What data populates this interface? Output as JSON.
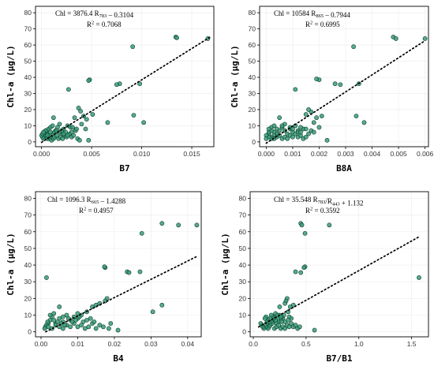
{
  "chart_data": [
    {
      "type": "scatter",
      "xlabel": "B7",
      "ylabel": "Chl-a (μg/L)",
      "equation": "Chl = 3876.4 R783 – 0.3104",
      "r2": "R2 = 0.7068",
      "xlim": [
        -0.0006,
        0.0172
      ],
      "ylim": [
        -3,
        84
      ],
      "xticks": [
        "0.000",
        "0.005",
        "0.010",
        "0.015"
      ],
      "xtick_values": [
        0,
        0.005,
        0.01,
        0.015
      ],
      "yticks": [
        "0",
        "10",
        "20",
        "30",
        "40",
        "50",
        "60",
        "70",
        "80"
      ],
      "ytick_values": [
        0,
        10,
        20,
        30,
        40,
        50,
        60,
        70,
        80
      ],
      "trend": {
        "slope": 3876.4,
        "intercept": -0.3104,
        "x_range": [
          0,
          0.0168
        ]
      },
      "points": [
        [
          0.0166,
          64
        ],
        [
          0.0134,
          65
        ],
        [
          0.0135,
          64.5
        ],
        [
          0.0091,
          59
        ],
        [
          0.0098,
          36
        ],
        [
          0.0078,
          36
        ],
        [
          0.0075,
          35.5
        ],
        [
          0.0092,
          16.5
        ],
        [
          0.0102,
          12
        ],
        [
          0.0066,
          12
        ],
        [
          0.0048,
          38.5
        ],
        [
          0.0047,
          38
        ],
        [
          0.0027,
          32.5
        ],
        [
          0.0037,
          21
        ],
        [
          0.0039,
          19
        ],
        [
          0.0033,
          15
        ],
        [
          0.0042,
          16
        ],
        [
          0.0045,
          14
        ],
        [
          0.0051,
          17
        ],
        [
          0.004,
          11
        ],
        [
          0.0034,
          7
        ],
        [
          0.0044,
          8
        ],
        [
          0.0029,
          9
        ],
        [
          0.0026,
          10
        ],
        [
          0.0024,
          6
        ],
        [
          0.0022,
          8
        ],
        [
          0.002,
          5
        ],
        [
          0.0018,
          11
        ],
        [
          0.0016,
          9
        ],
        [
          0.0014,
          7
        ],
        [
          0.0012,
          15
        ],
        [
          0.0011,
          5
        ],
        [
          0.0009,
          6
        ],
        [
          0.0008,
          4
        ],
        [
          0.0007,
          3
        ],
        [
          0.0006,
          2
        ],
        [
          0.0005,
          5
        ],
        [
          0.0004,
          3
        ],
        [
          0.0003,
          4
        ],
        [
          0.0002,
          2
        ],
        [
          0.0001,
          3
        ],
        [
          0.0,
          4
        ],
        [
          0.0001,
          5
        ],
        [
          0.0003,
          6
        ],
        [
          0.0005,
          7
        ],
        [
          0.0006,
          4
        ],
        [
          0.0008,
          2
        ],
        [
          0.001,
          1
        ],
        [
          0.0012,
          2
        ],
        [
          0.0013,
          3
        ],
        [
          0.0015,
          4
        ],
        [
          0.0017,
          2
        ],
        [
          0.0019,
          3
        ],
        [
          0.0021,
          2
        ],
        [
          0.0023,
          4
        ],
        [
          0.0025,
          3
        ],
        [
          0.0028,
          5
        ],
        [
          0.003,
          3
        ],
        [
          0.0032,
          4
        ],
        [
          0.0036,
          2
        ],
        [
          0.0038,
          1
        ],
        [
          0.0047,
          1
        ],
        [
          0.0007,
          8
        ],
        [
          0.0009,
          9
        ],
        [
          0.0011,
          10
        ],
        [
          0.0004,
          7
        ],
        [
          0.0002,
          6
        ],
        [
          0.0013,
          6
        ],
        [
          0.0015,
          7
        ],
        [
          0.0018,
          6
        ],
        [
          0.002,
          7
        ],
        [
          0.0022,
          5
        ],
        [
          0.0026,
          4
        ],
        [
          0.003,
          6
        ],
        [
          0.0031,
          9
        ],
        [
          0.0035,
          8
        ]
      ]
    },
    {
      "type": "scatter",
      "xlabel": "B8A",
      "ylabel": "Chl-a (μg/L)",
      "equation": "Chl = 10584 R865 – 0.7944",
      "r2": "R2 = 0.6995",
      "xlim": [
        -0.00025,
        0.00613
      ],
      "ylim": [
        -3,
        84
      ],
      "xticks": [
        "0.000",
        "0.001",
        "0.002",
        "0.003",
        "0.004",
        "0.005",
        "0.006"
      ],
      "xtick_values": [
        0,
        0.001,
        0.002,
        0.003,
        0.004,
        0.005,
        0.006
      ],
      "yticks": [
        "0",
        "10",
        "20",
        "30",
        "40",
        "50",
        "60",
        "70",
        "80"
      ],
      "ytick_values": [
        0,
        10,
        20,
        30,
        40,
        50,
        60,
        70,
        80
      ],
      "trend": {
        "slope": 10584,
        "intercept": -0.7944,
        "x_range": [
          0,
          0.006
        ]
      },
      "points": [
        [
          0.006,
          64
        ],
        [
          0.0048,
          65
        ],
        [
          0.0049,
          64
        ],
        [
          0.0033,
          59
        ],
        [
          0.0035,
          36
        ],
        [
          0.0028,
          35.5
        ],
        [
          0.0026,
          36
        ],
        [
          0.0034,
          16
        ],
        [
          0.0037,
          12
        ],
        [
          0.002,
          38.5
        ],
        [
          0.0019,
          39
        ],
        [
          0.0011,
          32.5
        ],
        [
          0.0016,
          20
        ],
        [
          0.0017,
          18.5
        ],
        [
          0.0015,
          17
        ],
        [
          0.0019,
          15
        ],
        [
          0.0021,
          16
        ],
        [
          0.0018,
          12
        ],
        [
          0.0023,
          1
        ],
        [
          0.0014,
          8
        ],
        [
          0.0013,
          9
        ],
        [
          0.0012,
          7
        ],
        [
          0.0011,
          10
        ],
        [
          0.001,
          6
        ],
        [
          0.0009,
          8
        ],
        [
          0.0008,
          5
        ],
        [
          0.0007,
          11
        ],
        [
          0.0006,
          9
        ],
        [
          0.0005,
          7
        ],
        [
          0.0005,
          15
        ],
        [
          0.0004,
          5
        ],
        [
          0.0003,
          6
        ],
        [
          0.0003,
          4
        ],
        [
          0.0002,
          3
        ],
        [
          0.0002,
          2
        ],
        [
          0.0001,
          5
        ],
        [
          0.0001,
          3
        ],
        [
          0.0,
          4
        ],
        [
          0.0,
          2
        ],
        [
          0.0001,
          6
        ],
        [
          0.0002,
          7
        ],
        [
          0.0003,
          2
        ],
        [
          0.0004,
          3
        ],
        [
          0.0005,
          4
        ],
        [
          0.0006,
          2
        ],
        [
          0.0007,
          3
        ],
        [
          0.0008,
          2
        ],
        [
          0.0009,
          4
        ],
        [
          0.001,
          3
        ],
        [
          0.0011,
          5
        ],
        [
          0.0012,
          3
        ],
        [
          0.0013,
          4
        ],
        [
          0.0014,
          2
        ],
        [
          0.0015,
          3
        ],
        [
          0.0016,
          5
        ],
        [
          0.0004,
          8
        ],
        [
          0.0006,
          10
        ],
        [
          0.0007,
          7
        ],
        [
          0.0009,
          9
        ],
        [
          0.001,
          8
        ],
        [
          0.0012,
          6
        ],
        [
          0.0013,
          6
        ],
        [
          0.0015,
          8
        ],
        [
          0.0017,
          7
        ],
        [
          0.0018,
          6
        ],
        [
          0.002,
          9
        ],
        [
          0.0002,
          9
        ],
        [
          0.0003,
          10
        ],
        [
          0.0001,
          8
        ]
      ]
    },
    {
      "type": "scatter",
      "xlabel": "B4",
      "ylabel": "Chl-a (μg/L)",
      "equation": "Chl = 1096.3 R665 – 1.4288",
      "r2": "R2 = 0.4957",
      "xlim": [
        -0.0015,
        0.0437
      ],
      "ylim": [
        -3,
        84
      ],
      "xticks": [
        "0.00",
        "0.01",
        "0.02",
        "0.03",
        "0.04"
      ],
      "xtick_values": [
        0,
        0.01,
        0.02,
        0.03,
        0.04
      ],
      "yticks": [
        "0",
        "10",
        "20",
        "30",
        "40",
        "50",
        "60",
        "70",
        "80"
      ],
      "ytick_values": [
        0,
        10,
        20,
        30,
        40,
        50,
        60,
        70,
        80
      ],
      "trend": {
        "slope": 1096.3,
        "intercept": -1.4288,
        "x_range": [
          0.0013,
          0.0425
        ]
      },
      "points": [
        [
          0.0425,
          64
        ],
        [
          0.033,
          65
        ],
        [
          0.0375,
          64
        ],
        [
          0.0275,
          59
        ],
        [
          0.0235,
          36
        ],
        [
          0.024,
          35.5
        ],
        [
          0.027,
          36
        ],
        [
          0.033,
          16
        ],
        [
          0.0305,
          12
        ],
        [
          0.0175,
          38.5
        ],
        [
          0.0173,
          39
        ],
        [
          0.0015,
          32.5
        ],
        [
          0.018,
          20
        ],
        [
          0.0175,
          18.5
        ],
        [
          0.016,
          17
        ],
        [
          0.014,
          15
        ],
        [
          0.015,
          16
        ],
        [
          0.0125,
          12
        ],
        [
          0.021,
          1
        ],
        [
          0.01,
          8
        ],
        [
          0.009,
          9
        ],
        [
          0.008,
          7
        ],
        [
          0.007,
          10
        ],
        [
          0.006,
          6
        ],
        [
          0.005,
          8
        ],
        [
          0.004,
          5
        ],
        [
          0.0035,
          11
        ],
        [
          0.003,
          9
        ],
        [
          0.0025,
          7
        ],
        [
          0.005,
          15
        ],
        [
          0.002,
          5
        ],
        [
          0.0018,
          6
        ],
        [
          0.0015,
          4
        ],
        [
          0.0012,
          3
        ],
        [
          0.001,
          2
        ],
        [
          0.002,
          3
        ],
        [
          0.003,
          2
        ],
        [
          0.004,
          4
        ],
        [
          0.005,
          3
        ],
        [
          0.006,
          2
        ],
        [
          0.007,
          4
        ],
        [
          0.008,
          3
        ],
        [
          0.009,
          5
        ],
        [
          0.01,
          3
        ],
        [
          0.011,
          4
        ],
        [
          0.012,
          2
        ],
        [
          0.013,
          3
        ],
        [
          0.014,
          5
        ],
        [
          0.015,
          2
        ],
        [
          0.016,
          4
        ],
        [
          0.017,
          3
        ],
        [
          0.0185,
          2
        ],
        [
          0.019,
          5
        ],
        [
          0.006,
          9
        ],
        [
          0.0075,
          8
        ],
        [
          0.0085,
          6
        ],
        [
          0.0095,
          7
        ],
        [
          0.0105,
          9
        ],
        [
          0.0115,
          6
        ],
        [
          0.0125,
          7
        ],
        [
          0.0135,
          8
        ],
        [
          0.0145,
          6
        ],
        [
          0.0025,
          10
        ],
        [
          0.0035,
          7
        ],
        [
          0.0045,
          6
        ],
        [
          0.0055,
          5
        ],
        [
          0.0065,
          4
        ],
        [
          0.011,
          10
        ],
        [
          0.01,
          11
        ]
      ]
    },
    {
      "type": "scatter",
      "xlabel": "B7/B1",
      "ylabel": "Chl-a (μg/L)",
      "equation": "Chl = 35.548 R783/R443 + 1.132",
      "r2": "R2 = 0.3592",
      "xlim": [
        -0.03,
        1.66
      ],
      "ylim": [
        -3,
        84
      ],
      "xticks": [
        "0.0",
        "0.5",
        "1.0",
        "1.5"
      ],
      "xtick_values": [
        0,
        0.5,
        1.0,
        1.5
      ],
      "yticks": [
        "0",
        "10",
        "20",
        "30",
        "40",
        "50",
        "60",
        "70",
        "80"
      ],
      "ytick_values": [
        0,
        10,
        20,
        30,
        40,
        50,
        60,
        70,
        80
      ],
      "trend": {
        "slope": 35.548,
        "intercept": 1.132,
        "x_range": [
          0.05,
          1.57
        ]
      },
      "points": [
        [
          0.45,
          65
        ],
        [
          0.46,
          64
        ],
        [
          0.72,
          64
        ],
        [
          0.49,
          59
        ],
        [
          0.4,
          36
        ],
        [
          0.45,
          35.5
        ],
        [
          0.49,
          39
        ],
        [
          0.48,
          38.5
        ],
        [
          1.57,
          32.5
        ],
        [
          0.32,
          20
        ],
        [
          0.31,
          18.5
        ],
        [
          0.3,
          17
        ],
        [
          0.35,
          15
        ],
        [
          0.38,
          16
        ],
        [
          0.33,
          12
        ],
        [
          0.58,
          1
        ],
        [
          0.28,
          8
        ],
        [
          0.27,
          9
        ],
        [
          0.26,
          7
        ],
        [
          0.25,
          10
        ],
        [
          0.24,
          6
        ],
        [
          0.23,
          8
        ],
        [
          0.22,
          5
        ],
        [
          0.21,
          11
        ],
        [
          0.2,
          9
        ],
        [
          0.19,
          7
        ],
        [
          0.25,
          15
        ],
        [
          0.18,
          5
        ],
        [
          0.17,
          6
        ],
        [
          0.16,
          4
        ],
        [
          0.15,
          3
        ],
        [
          0.14,
          2
        ],
        [
          0.13,
          5
        ],
        [
          0.12,
          3
        ],
        [
          0.11,
          4
        ],
        [
          0.1,
          2
        ],
        [
          0.09,
          3
        ],
        [
          0.08,
          4
        ],
        [
          0.07,
          5
        ],
        [
          0.15,
          6
        ],
        [
          0.2,
          2
        ],
        [
          0.22,
          3
        ],
        [
          0.24,
          4
        ],
        [
          0.26,
          2
        ],
        [
          0.28,
          3
        ],
        [
          0.3,
          2
        ],
        [
          0.32,
          4
        ],
        [
          0.34,
          3
        ],
        [
          0.36,
          5
        ],
        [
          0.38,
          3
        ],
        [
          0.4,
          4
        ],
        [
          0.42,
          2
        ],
        [
          0.44,
          3
        ],
        [
          0.36,
          8
        ],
        [
          0.34,
          9
        ],
        [
          0.33,
          7
        ],
        [
          0.3,
          6
        ],
        [
          0.29,
          10
        ],
        [
          0.27,
          6
        ],
        [
          0.26,
          9
        ],
        [
          0.23,
          10
        ],
        [
          0.21,
          7
        ],
        [
          0.19,
          8
        ],
        [
          0.18,
          9
        ],
        [
          0.17,
          10
        ],
        [
          0.16,
          8
        ],
        [
          0.14,
          7
        ],
        [
          0.13,
          6
        ],
        [
          0.12,
          9
        ],
        [
          0.11,
          8
        ]
      ]
    }
  ]
}
